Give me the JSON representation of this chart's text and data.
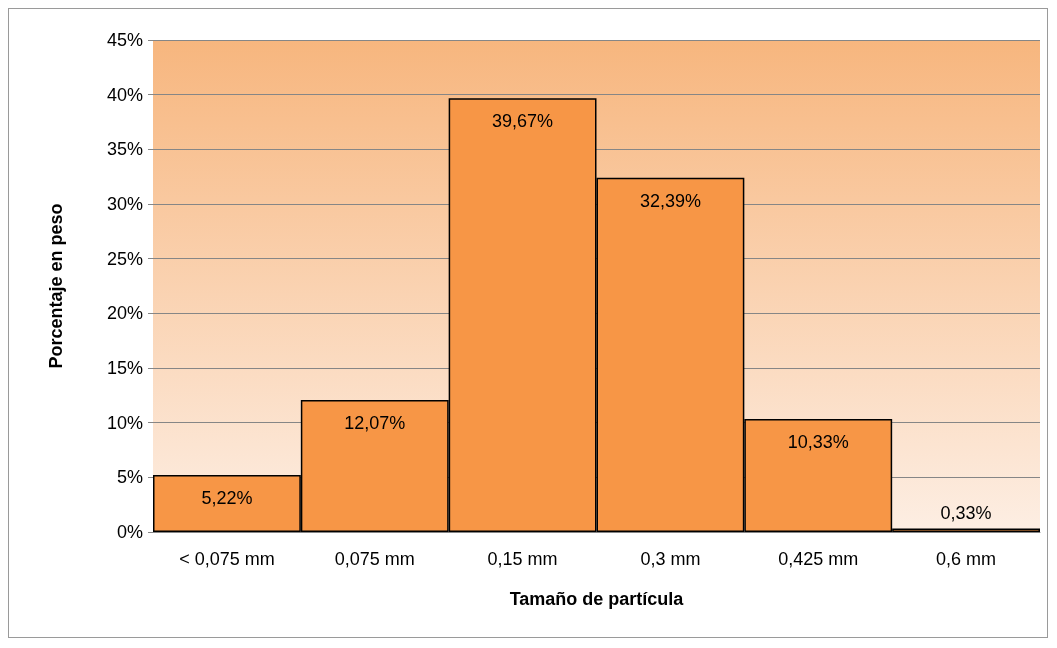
{
  "chart_data": {
    "type": "bar",
    "xlabel": "Tamaño de partícula",
    "ylabel": "Porcentaje en peso",
    "categories": [
      "< 0,075 mm",
      "0,075 mm",
      "0,15 mm",
      "0,3 mm",
      "0,425 mm",
      "0,6 mm"
    ],
    "values": [
      5.22,
      12.07,
      39.67,
      32.39,
      10.33,
      0.33
    ],
    "value_labels": [
      "5,22%",
      "12,07%",
      "39,67%",
      "32,39%",
      "10,33%",
      "0,33%"
    ],
    "color": "#f79646",
    "ylim": [
      0,
      45
    ],
    "yticks": [
      {
        "value": 0,
        "label": "0%"
      },
      {
        "value": 5,
        "label": "5%"
      },
      {
        "value": 10,
        "label": "10%"
      },
      {
        "value": 15,
        "label": "15%"
      },
      {
        "value": 20,
        "label": "20%"
      },
      {
        "value": 25,
        "label": "25%"
      },
      {
        "value": 30,
        "label": "30%"
      },
      {
        "value": 35,
        "label": "35%"
      },
      {
        "value": 40,
        "label": "40%"
      },
      {
        "value": 45,
        "label": "45%"
      }
    ],
    "grid": "y"
  }
}
